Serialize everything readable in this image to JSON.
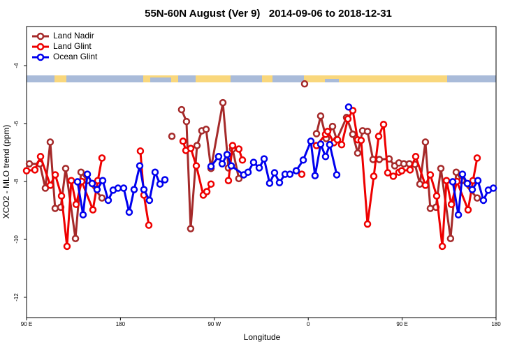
{
  "chart_data": {
    "type": "line",
    "title": "55N-60N August (Ver 9)   2014-09-06 to 2018-12-31",
    "xlabel": "Longitude",
    "ylabel": "XCO2 - MLO trend (ppm)",
    "xlim": [
      90,
      540
    ],
    "xticks": [
      {
        "value": 90,
        "label": "90 E"
      },
      {
        "value": 180,
        "label": "180"
      },
      {
        "value": 270,
        "label": "90 W"
      },
      {
        "value": 360,
        "label": "0"
      },
      {
        "value": 450,
        "label": "90 E"
      },
      {
        "value": 540,
        "label": "180"
      }
    ],
    "ylim": [
      -12.7,
      -2.65
    ],
    "yticks": [
      -12,
      -10,
      -8,
      -6,
      -4
    ],
    "legend": "upper left",
    "series": [
      {
        "name": "Land Nadir",
        "color": "#a52a2a",
        "x": [
          92.7,
          102.7,
          108,
          112.7,
          117.4,
          122.8,
          127.5,
          136.9,
          142.2,
          148.3,
          162.3,
          null,
          229.3,
          null,
          238.6,
          243.3,
          247.3,
          253.4,
          258,
          262.1,
          266.8,
          278.2,
          283.5,
          287.5,
          293.5,
          null,
          356.5,
          null,
          367.9,
          371.9,
          377.3,
          383.3,
          387.3,
          396.7,
          402.7,
          407.4,
          412.1,
          416.8,
          422.1,
          428.1,
          437.5,
          442.9,
          446.9,
          451.6,
          456.9,
          462.3,
          467,
          472.3,
          477,
          482.4,
          487.1,
          496.4,
          501.8,
          507.2,
          521.9
        ],
        "values": [
          -7.39,
          -7.39,
          -8.23,
          -6.64,
          -8.93,
          -8.89,
          -7.55,
          -9.97,
          -7.68,
          -7.97,
          -8.57,
          null,
          -6.44,
          null,
          -5.52,
          -5.93,
          -9.63,
          -6.76,
          -6.25,
          -6.2,
          -7.55,
          -5.28,
          -7.53,
          -6.88,
          -7.9,
          null,
          -4.63,
          null,
          -6.35,
          -5.74,
          -6.52,
          -6.1,
          -6.56,
          -5.79,
          -6.37,
          -7.02,
          -6.25,
          -6.27,
          -7.24,
          -7.24,
          -7.22,
          -7.46,
          -7.36,
          -7.39,
          -7.39,
          -7.41,
          -8.09,
          -6.64,
          -8.93,
          -8.89,
          -7.55,
          -9.97,
          -7.68,
          -7.97,
          -8.57
        ]
      },
      {
        "name": "Land Glint",
        "color": "#ee0000",
        "x": [
          90,
          98,
          103.4,
          112.8,
          117.5,
          123.5,
          128.8,
          132.9,
          137.5,
          142.9,
          153.6,
          158.3,
          162.3,
          null,
          199.1,
          202.5,
          207.2,
          null,
          240,
          242.7,
          247.4,
          252.7,
          259.4,
          262.8,
          266.8,
          null,
          283.5,
          287.5,
          293.5,
          296.9,
          null,
          353.8,
          null,
          367.9,
          376.6,
          378.6,
          384.6,
          388,
          392,
          398,
          402.7,
          407.4,
          410.7,
          416.8,
          422.8,
          427.5,
          432.2,
          436.2,
          441.5,
          446.9,
          449.6,
          457.6,
          463,
          472.3,
          477,
          483.1,
          488.5,
          492.5,
          497.2,
          502.5,
          513.2,
          517.9,
          521.9
        ],
        "values": [
          -7.63,
          -7.6,
          -7.14,
          -8.13,
          -7.77,
          -8.5,
          -10.24,
          -7.97,
          -8.79,
          -8.0,
          -8.98,
          -7.97,
          -7.19,
          null,
          -6.95,
          -8.47,
          -9.51,
          null,
          -6.61,
          -6.93,
          -6.86,
          -7.46,
          -8.47,
          -8.35,
          -8.09,
          null,
          -7.97,
          -6.76,
          -6.88,
          -7.26,
          null,
          -7.75,
          null,
          -6.76,
          -6.37,
          -6.27,
          -6.66,
          -6.56,
          -6.73,
          -5.84,
          -5.55,
          -6.56,
          -6.58,
          -9.47,
          -7.82,
          -6.44,
          -6.03,
          -7.7,
          -7.82,
          -7.68,
          -7.63,
          -7.6,
          -7.14,
          -8.13,
          -7.77,
          -8.5,
          -10.24,
          -7.97,
          -8.79,
          -8.0,
          -8.98,
          -7.97,
          -7.19
        ]
      },
      {
        "name": "Ocean Glint",
        "color": "#0000ee",
        "x": [
          138.9,
          144.2,
          148.3,
          152.9,
          157.6,
          163,
          168.3,
          173,
          177.7,
          183.1,
          188.4,
          193.1,
          198.5,
          202.5,
          207.8,
          213.2,
          217.9,
          222.6,
          null,
          266.8,
          274.1,
          277.5,
          282.2,
          286.2,
          298.2,
          302.3,
          307.6,
          313,
          317.7,
          323,
          327.7,
          332.4,
          337.8,
          342.4,
          348.5,
          355.2,
          362.5,
          366.5,
          371.9,
          376.6,
          380.6,
          387.3,
          null,
          398.7,
          null,
          498.5,
          503.9,
          507.8,
          512.5,
          517.2,
          522.6,
          527.9,
          532.6,
          537.4
        ],
        "values": [
          -8.01,
          -9.15,
          -7.75,
          -8.07,
          -8.28,
          -7.97,
          -8.65,
          -8.3,
          -8.23,
          -8.23,
          -9.06,
          -8.28,
          -7.46,
          -8.28,
          -8.65,
          -7.68,
          -8.09,
          -7.94,
          null,
          -7.48,
          -7.14,
          -7.39,
          -7.07,
          -7.46,
          -7.77,
          -7.68,
          -7.34,
          -7.53,
          -7.22,
          -8.06,
          -7.7,
          -8.04,
          -7.75,
          -7.75,
          -7.63,
          -7.26,
          -6.61,
          -7.8,
          -6.71,
          -7.14,
          -6.73,
          -7.77,
          null,
          -5.43,
          null,
          -8.01,
          -9.15,
          -7.75,
          -8.07,
          -8.28,
          -7.97,
          -8.65,
          -8.3,
          -8.23
        ]
      }
    ]
  }
}
